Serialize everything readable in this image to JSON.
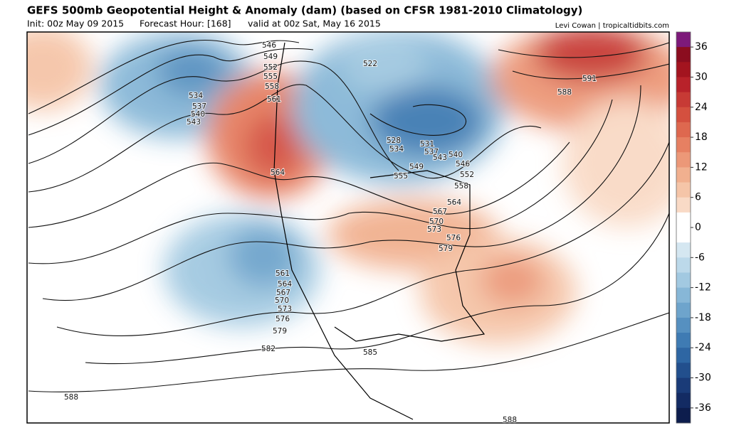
{
  "header": {
    "title": "GEFS 500mb Geopotential Height & Anomaly (dam) (based on CFSR 1981-2010 Climatology)",
    "init": "Init: 00z May 09 2015",
    "forecast_hour": "Forecast Hour: [168]",
    "valid": "valid at 00z Sat, May 16 2015",
    "credit": "Levi Cowan | tropicaltidbits.com"
  },
  "colorbar": {
    "ticks": [
      36,
      30,
      24,
      18,
      12,
      6,
      0,
      -6,
      -12,
      -18,
      -24,
      -30,
      -36
    ],
    "colors": [
      "#7d1a7a",
      "#8b0d1f",
      "#a3141f",
      "#b8222a",
      "#c73a35",
      "#d4503f",
      "#de684f",
      "#e68062",
      "#ec9878",
      "#f1b08f",
      "#f5c5a8",
      "#f9dac6",
      "#ffffff",
      "#ffffff",
      "#d5e7f1",
      "#bcd9ea",
      "#a2c9e1",
      "#87b7d7",
      "#6ea4cc",
      "#5690c0",
      "#3f7bb3",
      "#2e66a3",
      "#224f8d",
      "#1a3b78",
      "#132b63",
      "#0d1d4d"
    ]
  },
  "contour_labels": [
    "546",
    "549",
    "552",
    "555",
    "558",
    "561",
    "564",
    "534",
    "537",
    "540",
    "543",
    "522",
    "528",
    "534",
    "531",
    "537",
    "543",
    "540",
    "546",
    "549",
    "552",
    "555",
    "558",
    "564",
    "567",
    "570",
    "573",
    "576",
    "579",
    "561",
    "564",
    "567",
    "570",
    "573",
    "576",
    "579",
    "582",
    "585",
    "588",
    "588",
    "591",
    "588"
  ]
}
